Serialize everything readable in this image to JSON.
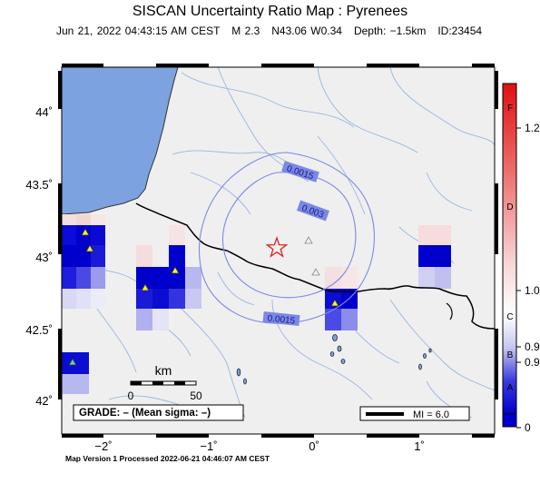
{
  "header": {
    "title": "SISCAN Uncertainty Ratio Map : Pyrenees",
    "subtitle": "Jun 21, 2022 04:43:15 AM CEST   M 2.3   N43.06 W0.34   Depth: −1.5km   ID:23454"
  },
  "axes": {
    "lon_ticks": [
      "−2˚",
      "−1˚",
      "0˚",
      "1˚"
    ],
    "lat_ticks": [
      "44˚",
      "43.5˚",
      "43˚",
      "42.5˚",
      "42˚"
    ]
  },
  "contours": [
    "0.0015",
    "0.003",
    "0.0015"
  ],
  "scale_bar": {
    "unit": "km",
    "min_label": "0",
    "max_label": "50"
  },
  "grade_box": {
    "text": "GRADE: – (Mean sigma: –)"
  },
  "mi_box": {
    "text": "MI = 6.0"
  },
  "colorbar": {
    "grades": [
      "F",
      "D",
      "C",
      "B",
      "A"
    ],
    "values": [
      "1.2",
      "1.0",
      "0.9",
      "0.9",
      "0"
    ]
  },
  "footer": {
    "text": "Map Version 1 Processed 2022-06-21 04:46:07 AM CEST"
  },
  "colors": {
    "land": "#efefef",
    "sea": "#7da2e0",
    "river": "#9ab6e0",
    "contour": "#7b88e6",
    "border": "#000000",
    "epicenter": "#e02020",
    "station_active": "#f5f03a",
    "station_special": "#58d8a0",
    "station_inactive": "#f0f0f0"
  }
}
